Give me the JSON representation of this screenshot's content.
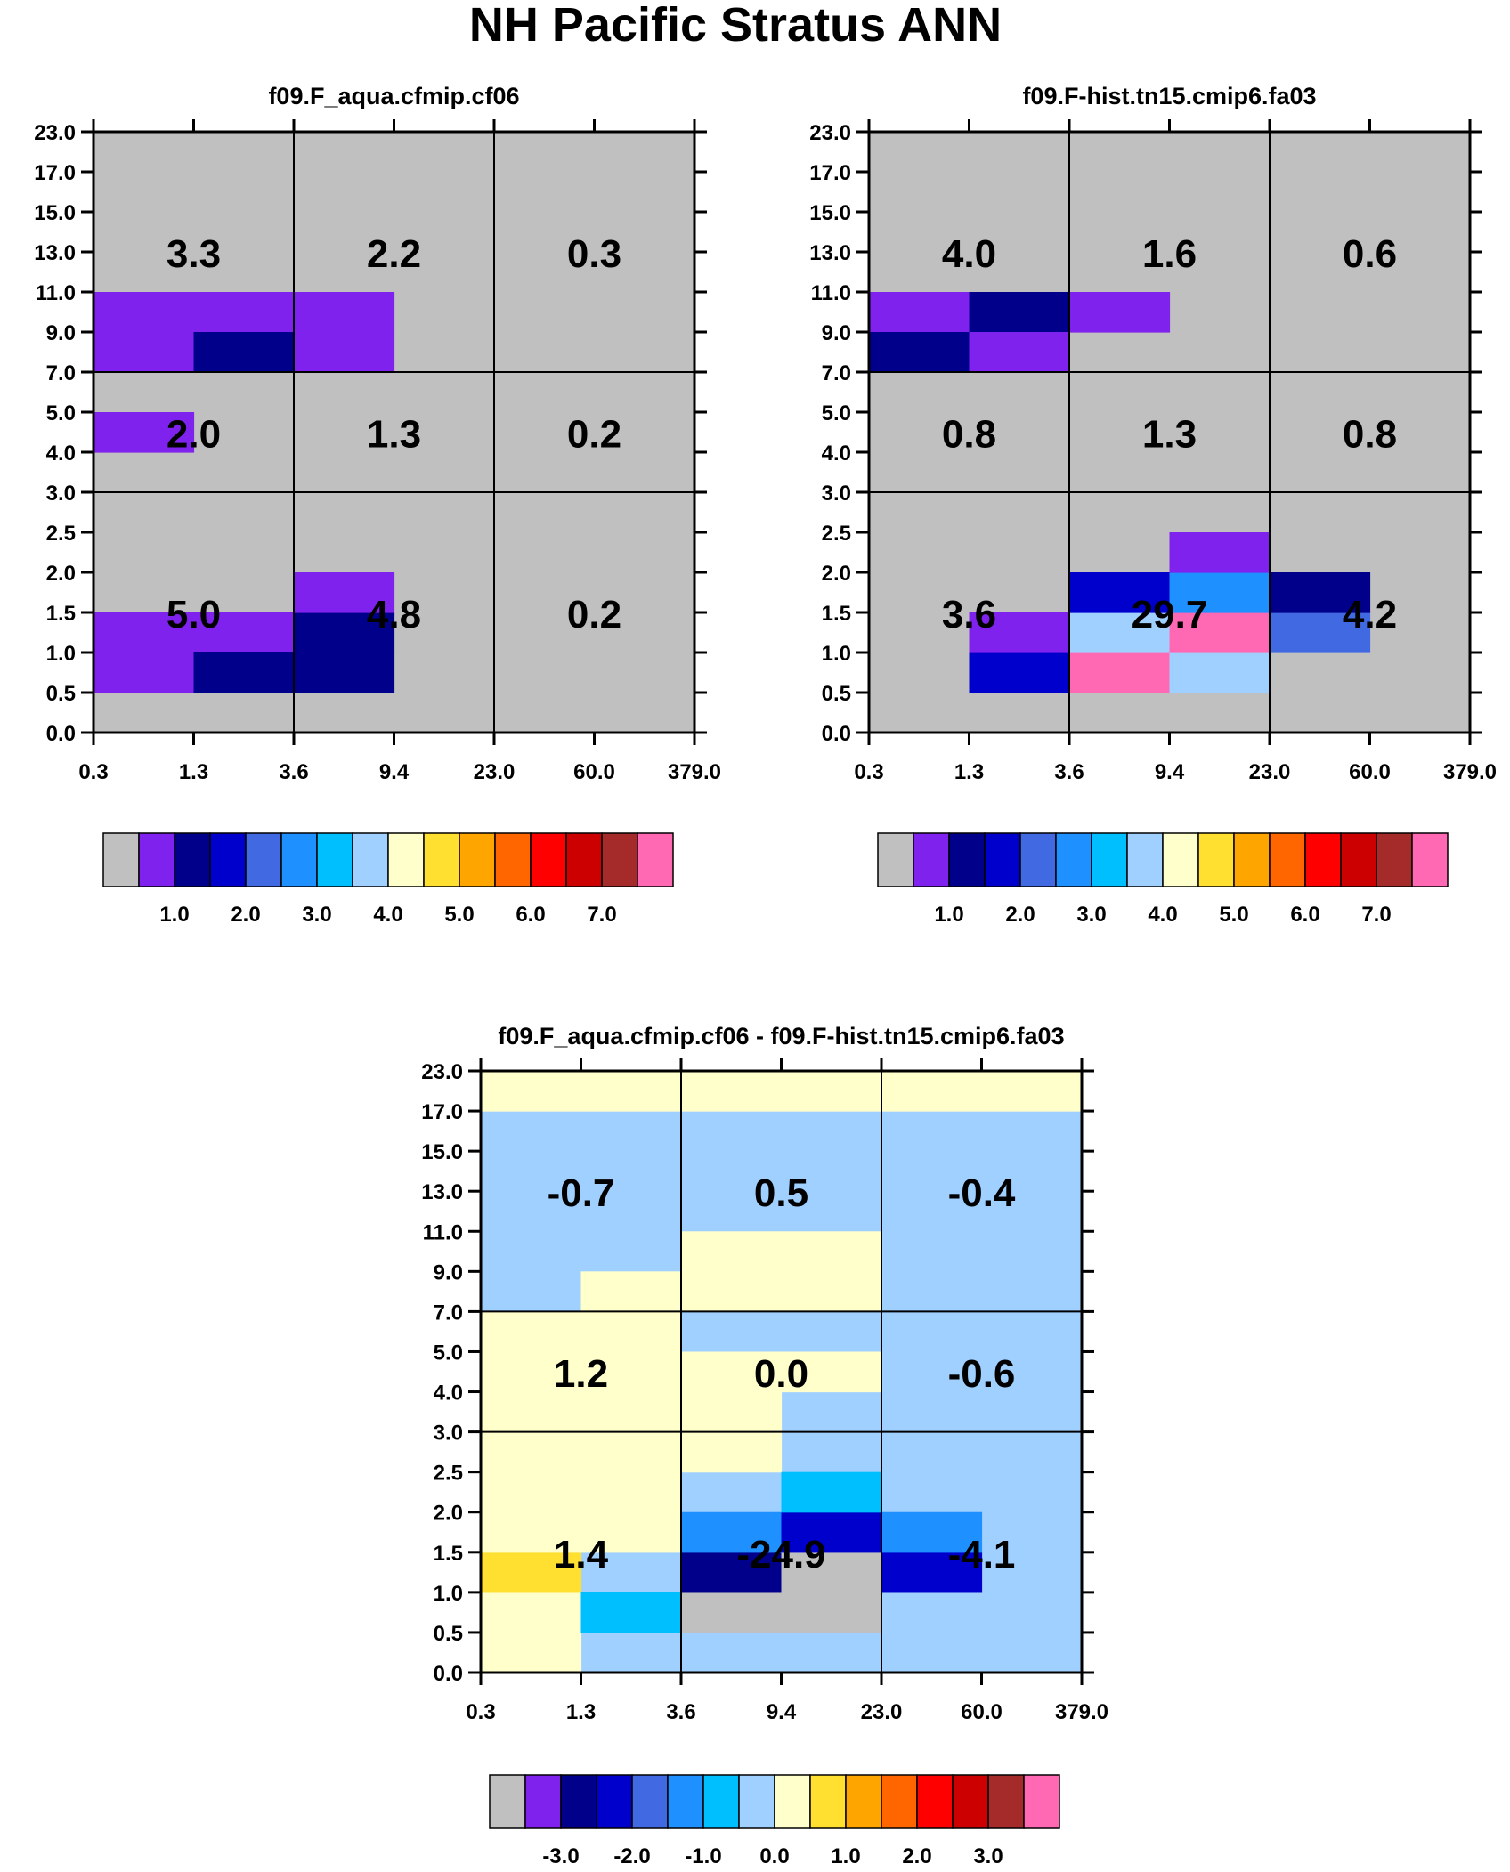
{
  "title": "NH Pacific Stratus ANN",
  "chart_data": [
    {
      "type": "heatmap",
      "title": "f09.F_aqua.cfmip.cf06",
      "x_ticks": [
        "0.3",
        "1.3",
        "3.6",
        "9.4",
        "23.0",
        "60.0",
        "379.0"
      ],
      "y_ticks": [
        "0.0",
        "0.5",
        "1.0",
        "1.5",
        "2.0",
        "2.5",
        "3.0",
        "4.0",
        "5.0",
        "7.0",
        "9.0",
        "11.0",
        "13.0",
        "15.0",
        "17.0",
        "23.0"
      ],
      "background": 0,
      "cells": [
        {
          "x": 0,
          "y": 9,
          "v": 1
        },
        {
          "x": 0,
          "y": 10,
          "v": 1
        },
        {
          "x": 1,
          "y": 10,
          "v": 1
        },
        {
          "x": 1,
          "y": 9,
          "v": 2
        },
        {
          "x": 2,
          "y": 9,
          "v": 1
        },
        {
          "x": 2,
          "y": 10,
          "v": 1
        },
        {
          "x": 0,
          "y": 7,
          "v": 1
        },
        {
          "x": 0,
          "y": 1,
          "v": 1
        },
        {
          "x": 0,
          "y": 2,
          "v": 1
        },
        {
          "x": 1,
          "y": 2,
          "v": 1
        },
        {
          "x": 1,
          "y": 1,
          "v": 2
        },
        {
          "x": 2,
          "y": 1,
          "v": 2
        },
        {
          "x": 2,
          "y": 2,
          "v": 2
        },
        {
          "x": 2,
          "y": 3,
          "v": 1
        }
      ],
      "annotations": [
        [
          "3.3",
          "2.2",
          "0.3"
        ],
        [
          "2.0",
          "1.3",
          "0.2"
        ],
        [
          "5.0",
          "4.8",
          "0.2"
        ]
      ],
      "colorbar": {
        "colors": [
          "#c0c0c0",
          "#8022ee",
          "#00008b",
          "#0000cd",
          "#4169e1",
          "#1e90ff",
          "#00bfff",
          "#a0d0ff",
          "#ffffcc",
          "#ffe030",
          "#ffa500",
          "#ff6600",
          "#ff0000",
          "#cc0000",
          "#a52a2a",
          "#ff69b4"
        ],
        "labels": [
          "1.0",
          "2.0",
          "3.0",
          "4.0",
          "5.0",
          "6.0",
          "7.0"
        ]
      }
    },
    {
      "type": "heatmap",
      "title": "f09.F-hist.tn15.cmip6.fa03",
      "x_ticks": [
        "0.3",
        "1.3",
        "3.6",
        "9.4",
        "23.0",
        "60.0",
        "379.0"
      ],
      "y_ticks": [
        "0.0",
        "0.5",
        "1.0",
        "1.5",
        "2.0",
        "2.5",
        "3.0",
        "4.0",
        "5.0",
        "7.0",
        "9.0",
        "11.0",
        "13.0",
        "15.0",
        "17.0",
        "23.0"
      ],
      "background": 0,
      "cells": [
        {
          "x": 0,
          "y": 10,
          "v": 1
        },
        {
          "x": 1,
          "y": 10,
          "v": 2
        },
        {
          "x": 2,
          "y": 10,
          "v": 1
        },
        {
          "x": 0,
          "y": 9,
          "v": 2
        },
        {
          "x": 1,
          "y": 9,
          "v": 1
        },
        {
          "x": 1,
          "y": 1,
          "v": 3
        },
        {
          "x": 1,
          "y": 2,
          "v": 1
        },
        {
          "x": 2,
          "y": 1,
          "v": 15
        },
        {
          "x": 2,
          "y": 2,
          "v": 7
        },
        {
          "x": 2,
          "y": 3,
          "v": 3
        },
        {
          "x": 3,
          "y": 1,
          "v": 7
        },
        {
          "x": 3,
          "y": 2,
          "v": 15
        },
        {
          "x": 3,
          "y": 3,
          "v": 5
        },
        {
          "x": 3,
          "y": 4,
          "v": 1
        },
        {
          "x": 4,
          "y": 2,
          "v": 4
        },
        {
          "x": 4,
          "y": 3,
          "v": 2
        }
      ],
      "annotations": [
        [
          "4.0",
          "1.6",
          "0.6"
        ],
        [
          "0.8",
          "1.3",
          "0.8"
        ],
        [
          "3.6",
          "29.7",
          "4.2"
        ]
      ],
      "colorbar": {
        "colors": [
          "#c0c0c0",
          "#8022ee",
          "#00008b",
          "#0000cd",
          "#4169e1",
          "#1e90ff",
          "#00bfff",
          "#a0d0ff",
          "#ffffcc",
          "#ffe030",
          "#ffa500",
          "#ff6600",
          "#ff0000",
          "#cc0000",
          "#a52a2a",
          "#ff69b4"
        ],
        "labels": [
          "1.0",
          "2.0",
          "3.0",
          "4.0",
          "5.0",
          "6.0",
          "7.0"
        ]
      }
    },
    {
      "type": "heatmap",
      "title": "f09.F_aqua.cfmip.cf06 - f09.F-hist.tn15.cmip6.fa03",
      "x_ticks": [
        "0.3",
        "1.3",
        "3.6",
        "9.4",
        "23.0",
        "60.0",
        "379.0"
      ],
      "y_ticks": [
        "0.0",
        "0.5",
        "1.0",
        "1.5",
        "2.0",
        "2.5",
        "3.0",
        "4.0",
        "5.0",
        "7.0",
        "9.0",
        "11.0",
        "13.0",
        "15.0",
        "17.0",
        "23.0"
      ],
      "background": 7,
      "cells": [
        {
          "x": 0,
          "y": 14,
          "v": 8
        },
        {
          "x": 1,
          "y": 14,
          "v": 8
        },
        {
          "x": 2,
          "y": 14,
          "v": 8
        },
        {
          "x": 3,
          "y": 14,
          "v": 8
        },
        {
          "x": 4,
          "y": 14,
          "v": 8
        },
        {
          "x": 5,
          "y": 14,
          "v": 8
        },
        {
          "x": 1,
          "y": 9,
          "v": 8
        },
        {
          "x": 2,
          "y": 9,
          "v": 8
        },
        {
          "x": 2,
          "y": 10,
          "v": 8
        },
        {
          "x": 3,
          "y": 9,
          "v": 8
        },
        {
          "x": 3,
          "y": 10,
          "v": 8
        },
        {
          "x": 0,
          "y": 6,
          "v": 8
        },
        {
          "x": 0,
          "y": 7,
          "v": 8
        },
        {
          "x": 0,
          "y": 8,
          "v": 8
        },
        {
          "x": 1,
          "y": 6,
          "v": 8
        },
        {
          "x": 1,
          "y": 7,
          "v": 8
        },
        {
          "x": 1,
          "y": 8,
          "v": 8
        },
        {
          "x": 2,
          "y": 6,
          "v": 8
        },
        {
          "x": 2,
          "y": 7,
          "v": 8
        },
        {
          "x": 3,
          "y": 7,
          "v": 8
        },
        {
          "x": 0,
          "y": 0,
          "v": 8
        },
        {
          "x": 0,
          "y": 1,
          "v": 8
        },
        {
          "x": 0,
          "y": 2,
          "v": 9
        },
        {
          "x": 0,
          "y": 3,
          "v": 8
        },
        {
          "x": 0,
          "y": 4,
          "v": 8
        },
        {
          "x": 0,
          "y": 5,
          "v": 8
        },
        {
          "x": 1,
          "y": 1,
          "v": 6
        },
        {
          "x": 1,
          "y": 3,
          "v": 8
        },
        {
          "x": 1,
          "y": 4,
          "v": 8
        },
        {
          "x": 1,
          "y": 5,
          "v": 8
        },
        {
          "x": 2,
          "y": 1,
          "v": 0
        },
        {
          "x": 2,
          "y": 2,
          "v": 2
        },
        {
          "x": 2,
          "y": 3,
          "v": 5
        },
        {
          "x": 2,
          "y": 5,
          "v": 8
        },
        {
          "x": 3,
          "y": 1,
          "v": 0
        },
        {
          "x": 3,
          "y": 2,
          "v": 0
        },
        {
          "x": 3,
          "y": 3,
          "v": 3
        },
        {
          "x": 3,
          "y": 4,
          "v": 6
        },
        {
          "x": 4,
          "y": 2,
          "v": 3
        },
        {
          "x": 4,
          "y": 3,
          "v": 5
        }
      ],
      "annotations": [
        [
          "-0.7",
          "0.5",
          "-0.4"
        ],
        [
          "1.2",
          "0.0",
          "-0.6"
        ],
        [
          "1.4",
          "-24.9",
          "-4.1"
        ]
      ],
      "colorbar": {
        "colors": [
          "#c0c0c0",
          "#8022ee",
          "#00008b",
          "#0000cd",
          "#4169e1",
          "#1e90ff",
          "#00bfff",
          "#a0d0ff",
          "#ffffcc",
          "#ffe030",
          "#ffa500",
          "#ff6600",
          "#ff0000",
          "#cc0000",
          "#a52a2a",
          "#ff69b4"
        ],
        "labels": [
          "-3.0",
          "-2.0",
          "-1.0",
          "0.0",
          "1.0",
          "2.0",
          "3.0"
        ]
      }
    }
  ]
}
